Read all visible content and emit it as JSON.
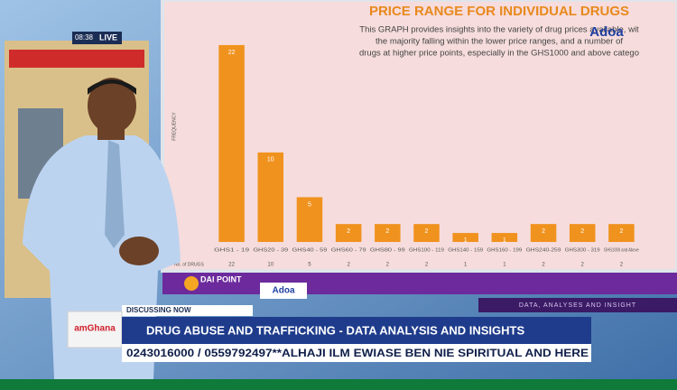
{
  "chart_data": {
    "type": "bar",
    "title": "PRICE RANGE FOR INDIVIDUAL DRUGS",
    "subtitle": [
      "This GRAPH provides insights into the variety of drug prices available, wit",
      "the majority falling within the lower price ranges, and a number of",
      "drugs at higher price points, especially in the GHS1000 and above catego"
    ],
    "y_label": "FREQUENCY",
    "row_label": "No. of DRUGS",
    "categories": [
      "GHS1 - 19",
      "GHS20 - 39",
      "GHS40 - 59",
      "GHS60 - 79",
      "GHS80 - 99",
      "GHS100 - 119",
      "GHS140 - 159",
      "GHS160 - 199",
      "GHS240-259",
      "GHS300 - 319",
      "GHS1000 and Above"
    ],
    "values": [
      22,
      10,
      5,
      2,
      2,
      2,
      1,
      1,
      2,
      2,
      2
    ],
    "color": "#f0921e",
    "ylim": [
      0,
      23
    ]
  },
  "broadcast": {
    "time": "08:38",
    "live": "LIVE",
    "screen_logo": "Adoa",
    "panel_left": "DAI POINT",
    "panel_logo": "Adoa",
    "panel_right": "DATA, ANALYSES AND INSIGHT",
    "discussing": "DISCUSSING NOW",
    "channel": "amGhana",
    "headline": "DRUG ABUSE AND TRAFFICKING - DATA ANALYSIS AND INSIGHTS",
    "ticker": "0243016000 / 0559792497**ALHAJI ILM EWIASE BEN NIE SPIRITUAL AND HERE"
  }
}
